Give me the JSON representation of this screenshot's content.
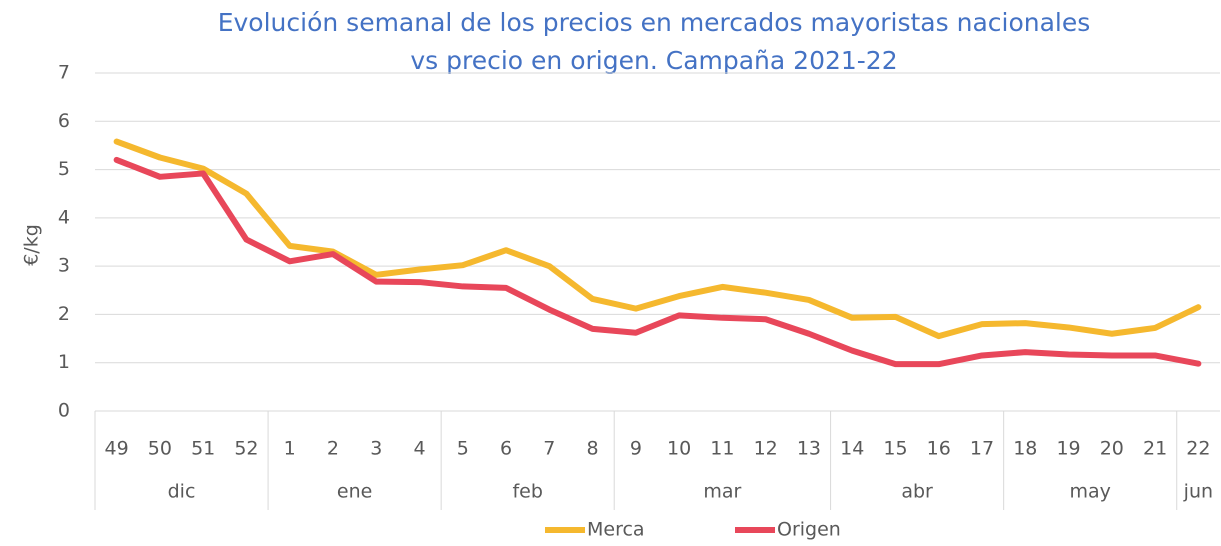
{
  "chart_data": {
    "type": "line",
    "title": [
      "Evolución semanal de los precios en mercados mayoristas nacionales",
      "vs precio en origen. Campaña 2021-22"
    ],
    "y_label": "€/kg",
    "category_groups": [
      {
        "label": "dic",
        "categories": [
          "49",
          "50",
          "51",
          "52"
        ]
      },
      {
        "label": "ene",
        "categories": [
          "1",
          "2",
          "3",
          "4"
        ]
      },
      {
        "label": "feb",
        "categories": [
          "5",
          "6",
          "7",
          "8"
        ]
      },
      {
        "label": "mar",
        "categories": [
          "9",
          "10",
          "11",
          "12",
          "13"
        ]
      },
      {
        "label": "abr",
        "categories": [
          "14",
          "15",
          "16",
          "17"
        ]
      },
      {
        "label": "may",
        "categories": [
          "18",
          "19",
          "20",
          "21"
        ]
      },
      {
        "label": "jun",
        "categories": [
          "22"
        ]
      }
    ],
    "series": [
      {
        "name": "Merca",
        "color": "#f5b82e",
        "values": [
          5.58,
          5.25,
          5.02,
          4.5,
          3.42,
          3.3,
          2.82,
          2.93,
          3.02,
          3.33,
          3.0,
          2.32,
          2.12,
          2.38,
          2.57,
          2.45,
          2.3,
          1.93,
          1.95,
          1.55,
          1.8,
          1.82,
          1.73,
          1.6,
          1.72,
          2.15
        ]
      },
      {
        "name": "Origen",
        "color": "#e8475a",
        "values": [
          5.2,
          4.85,
          4.92,
          3.55,
          3.1,
          3.25,
          2.68,
          2.67,
          2.58,
          2.55,
          2.1,
          1.7,
          1.62,
          1.98,
          1.93,
          1.9,
          1.6,
          1.25,
          0.97,
          0.97,
          1.15,
          1.22,
          1.17,
          1.15,
          1.15,
          0.98
        ]
      }
    ],
    "ylim": [
      0,
      7
    ],
    "yticks": [
      0,
      1,
      2,
      3,
      4,
      5,
      6,
      7
    ],
    "grid": true,
    "legend": "bottom"
  }
}
